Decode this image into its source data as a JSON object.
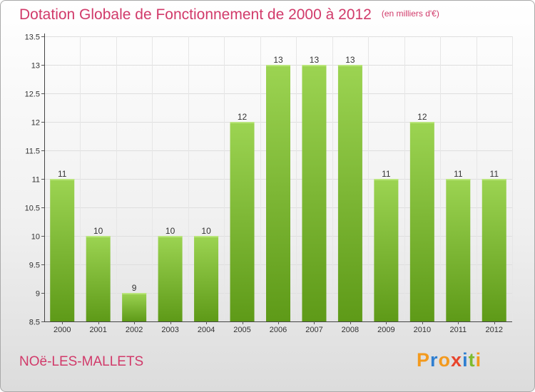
{
  "header": {
    "title": "Dotation Globale de Fonctionnement de 2000 à 2012",
    "subtitle": "(en milliers d'€)"
  },
  "footer": {
    "place": "NOë-LES-MALLETS",
    "brand": "Proxiti",
    "brand_letters": [
      "P",
      "r",
      "o",
      "x",
      "i",
      "t",
      "i"
    ],
    "brand_colors": [
      "#f39a1e",
      "#2f7fd1",
      "#f39a1e",
      "#e8442c",
      "#2f7fd1",
      "#7dbb2d",
      "#f39a1e"
    ]
  },
  "chart_data": {
    "type": "bar",
    "categories": [
      "2000",
      "2001",
      "2002",
      "2003",
      "2004",
      "2005",
      "2006",
      "2007",
      "2008",
      "2009",
      "2010",
      "2011",
      "2012"
    ],
    "values": [
      11,
      10,
      9,
      10,
      10,
      12,
      13,
      13,
      13,
      11,
      12,
      11,
      11
    ],
    "value_labels": [
      "11",
      "10",
      "9",
      "10",
      "10",
      "12",
      "13",
      "13",
      "13",
      "11",
      "12",
      "11",
      "11"
    ],
    "yticks": [
      8.5,
      9,
      9.5,
      10,
      10.5,
      11,
      11.5,
      12,
      12.5,
      13,
      13.5
    ],
    "ytick_labels": [
      "8.5",
      "9",
      "9.5",
      "10",
      "10.5",
      "11",
      "11.5",
      "12",
      "12.5",
      "13",
      "13.5"
    ],
    "ylim": [
      8.5,
      13.5
    ],
    "grid": true,
    "bar_color_top": "#9cd452",
    "bar_color_bottom": "#5e9a18",
    "title": "Dotation Globale de Fonctionnement de 2000 à 2012",
    "xlabel": "",
    "ylabel": ""
  }
}
